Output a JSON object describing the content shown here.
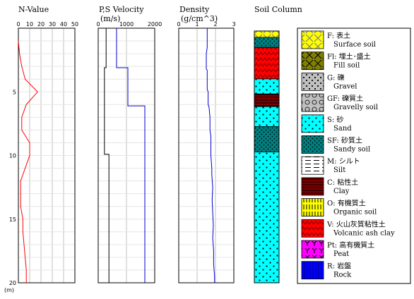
{
  "chart_data": [
    {
      "type": "line",
      "title": "N-Value",
      "x_ticks": [
        "0",
        "10",
        "20",
        "30",
        "40",
        "50"
      ],
      "xlim": [
        0,
        50
      ],
      "ylim": [
        0,
        20
      ],
      "y_ticks": [
        "5",
        "10",
        "15",
        "20"
      ],
      "y_unit": "(m)",
      "grid": true,
      "series": [
        {
          "color": "#ff0000",
          "points": [
            [
              0,
              1
            ],
            [
              1,
              2
            ],
            [
              3,
              3
            ],
            [
              6,
              4
            ],
            [
              17,
              5
            ],
            [
              7,
              6
            ],
            [
              3,
              7
            ],
            [
              3,
              8
            ],
            [
              10,
              9
            ],
            [
              10,
              10
            ],
            [
              6,
              11
            ],
            [
              2,
              12
            ],
            [
              2,
              13
            ],
            [
              2,
              14
            ],
            [
              4,
              15
            ],
            [
              4,
              16
            ],
            [
              5,
              17
            ],
            [
              6,
              18
            ],
            [
              7,
              19
            ],
            [
              7,
              20
            ]
          ]
        }
      ]
    },
    {
      "type": "line",
      "title": "P,S Velocity",
      "subtitle": "(m/s)",
      "x_ticks": [
        "0",
        "1000",
        "2000"
      ],
      "xlim": [
        0,
        2000
      ],
      "ylim": [
        0,
        20
      ],
      "grid": true,
      "series": [
        {
          "color": "#0000cc",
          "points": [
            [
              650,
              0
            ],
            [
              650,
              3.1
            ],
            [
              1050,
              3.1
            ],
            [
              1050,
              6.1
            ],
            [
              1650,
              6.1
            ],
            [
              1650,
              20
            ]
          ]
        },
        {
          "color": "#000000",
          "points": [
            [
              280,
              0
            ],
            [
              280,
              3.1
            ],
            [
              220,
              3.1
            ],
            [
              220,
              9.9
            ],
            [
              380,
              9.9
            ],
            [
              380,
              20
            ]
          ]
        }
      ]
    },
    {
      "type": "line",
      "title": "Density",
      "subtitle": "(g/cm^3)",
      "x_ticks": [
        "0",
        "1",
        "2",
        "3"
      ],
      "xlim": [
        0,
        3
      ],
      "ylim": [
        0,
        20
      ],
      "grid": true,
      "series": [
        {
          "color": "#0000cc",
          "points": [
            [
              1.55,
              0
            ],
            [
              1.55,
              1.5
            ],
            [
              1.5,
              2
            ],
            [
              1.5,
              3.2
            ],
            [
              1.55,
              3.3
            ],
            [
              1.55,
              4.8
            ],
            [
              1.6,
              5
            ],
            [
              1.6,
              6
            ],
            [
              1.65,
              6.2
            ],
            [
              1.7,
              7
            ],
            [
              1.7,
              8
            ],
            [
              1.75,
              8.5
            ],
            [
              1.75,
              10
            ],
            [
              1.8,
              11
            ],
            [
              1.8,
              11.5
            ],
            [
              1.85,
              12.5
            ],
            [
              1.82,
              13.5
            ],
            [
              1.85,
              14.5
            ],
            [
              1.88,
              15.5
            ],
            [
              1.85,
              16.5
            ],
            [
              1.9,
              17.5
            ],
            [
              1.9,
              18.5
            ],
            [
              1.95,
              19.5
            ],
            [
              1.95,
              20
            ]
          ]
        }
      ]
    },
    {
      "type": "table",
      "title": "Soil Column",
      "layers": [
        {
          "soil": "F",
          "top": 0,
          "bottom": 0.5
        },
        {
          "soil": "SF",
          "top": 0.5,
          "bottom": 1.3
        },
        {
          "soil": "V",
          "top": 1.3,
          "bottom": 3.8
        },
        {
          "soil": "S",
          "top": 3.8,
          "bottom": 5.0
        },
        {
          "soil": "C",
          "top": 5.0,
          "bottom": 6.0
        },
        {
          "soil": "S",
          "top": 6.0,
          "bottom": 7.6
        },
        {
          "soil": "SF",
          "top": 7.6,
          "bottom": 9.6
        },
        {
          "soil": "S",
          "top": 9.6,
          "bottom": 20
        }
      ]
    }
  ],
  "legend": [
    {
      "code": "F",
      "label": "F: 表土",
      "sub": "Surface soil",
      "pattern": "F"
    },
    {
      "code": "Fl",
      "label": "Fl: 埋土･盛土",
      "sub": "Fill soil",
      "pattern": "Fl"
    },
    {
      "code": "G",
      "label": "G: 礫",
      "sub": "Gravel",
      "pattern": "G"
    },
    {
      "code": "GF",
      "label": "GF: 礫質土",
      "sub": "Gravelly soil",
      "pattern": "GF"
    },
    {
      "code": "S",
      "label": "S: 砂",
      "sub": "Sand",
      "pattern": "S"
    },
    {
      "code": "SF",
      "label": "SF: 砂質土",
      "sub": "Sandy soil",
      "pattern": "SF"
    },
    {
      "code": "M",
      "label": "M: シルト",
      "sub": "Silt",
      "pattern": "M"
    },
    {
      "code": "C",
      "label": "C: 粘性土",
      "sub": "Clay",
      "pattern": "C"
    },
    {
      "code": "O",
      "label": "O: 有機質土",
      "sub": "Organic soil",
      "pattern": "O"
    },
    {
      "code": "V",
      "label": "V: 火山灰質粘性土",
      "sub": "Volcanic ash clay",
      "pattern": "V"
    },
    {
      "code": "Pt",
      "label": "Pt: 高有機質土",
      "sub": "Peat",
      "pattern": "Pt"
    },
    {
      "code": "R",
      "label": "R: 岩盤",
      "sub": "Rock",
      "pattern": "R"
    }
  ]
}
